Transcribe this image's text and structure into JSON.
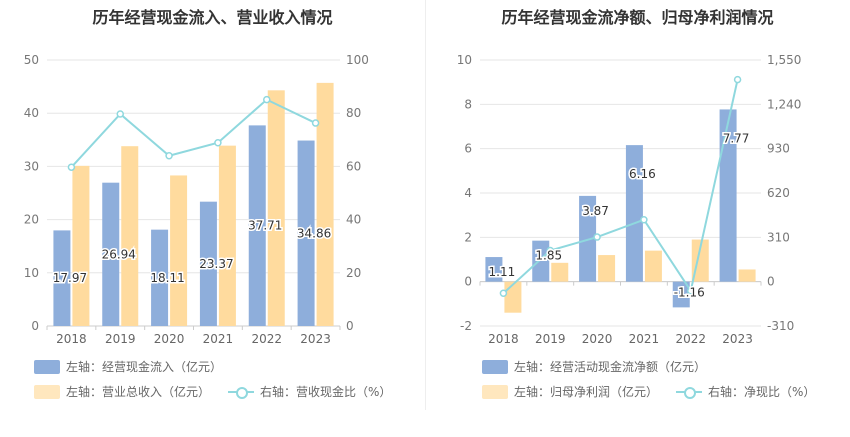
{
  "chart_data": [
    {
      "type": "bar",
      "title": "历年经营现金流入、营业收入情况",
      "categories": [
        "2018",
        "2019",
        "2020",
        "2021",
        "2022",
        "2023"
      ],
      "left_axis": {
        "min": 0,
        "max": 50,
        "ticks": [
          "0",
          "10",
          "20",
          "30",
          "40",
          "50"
        ]
      },
      "right_axis": {
        "min": 0,
        "max": 100,
        "ticks": [
          "0",
          "20",
          "40",
          "60",
          "80",
          "100"
        ]
      },
      "series": [
        {
          "name": "左轴：经营现金流入（亿元）",
          "type": "bar",
          "axis": "left",
          "color": "#8eaedb",
          "values": [
            17.97,
            26.94,
            18.11,
            23.37,
            37.71,
            34.86
          ],
          "labels": [
            "17.97",
            "26.94",
            "18.11",
            "23.37",
            "37.71",
            "34.86"
          ]
        },
        {
          "name": "左轴：营业总收入（亿元）",
          "type": "bar",
          "axis": "left",
          "color": "#ffdb9e",
          "values": [
            30.1,
            33.8,
            28.3,
            33.9,
            44.3,
            45.7
          ]
        },
        {
          "name": "右轴：营收现金比（%）",
          "type": "line",
          "axis": "right",
          "color": "#8fd8de",
          "values": [
            59.7,
            79.7,
            64.0,
            68.9,
            85.1,
            76.3
          ]
        }
      ],
      "legend": "bottom",
      "grid": true
    },
    {
      "type": "bar",
      "title": "历年经营现金流净额、归母净利润情况",
      "categories": [
        "2018",
        "2019",
        "2020",
        "2021",
        "2022",
        "2023"
      ],
      "left_axis": {
        "min": -2,
        "max": 10,
        "ticks": [
          "-2",
          "0",
          "2",
          "4",
          "6",
          "8",
          "10"
        ]
      },
      "right_axis": {
        "min": -310,
        "max": 1550,
        "ticks": [
          "-310",
          "0",
          "310",
          "620",
          "930",
          "1,240",
          "1,550"
        ]
      },
      "series": [
        {
          "name": "左轴：经营活动现金流净额（亿元）",
          "type": "bar",
          "axis": "left",
          "color": "#8eaedb",
          "values": [
            1.11,
            1.85,
            3.87,
            6.16,
            -1.16,
            7.77
          ],
          "labels": [
            "1.11",
            "1.85",
            "3.87",
            "6.16",
            "-1.16",
            "7.77"
          ]
        },
        {
          "name": "左轴：归母净利润（亿元）",
          "type": "bar",
          "axis": "left",
          "color": "#ffdb9e",
          "values": [
            -1.4,
            0.85,
            1.2,
            1.4,
            1.9,
            0.55
          ]
        },
        {
          "name": "右轴：净现比（%）",
          "type": "line",
          "axis": "right",
          "color": "#8fd8de",
          "values": [
            -81,
            218,
            312,
            433,
            -64,
            1413
          ]
        }
      ],
      "legend": "bottom",
      "grid": true
    }
  ]
}
